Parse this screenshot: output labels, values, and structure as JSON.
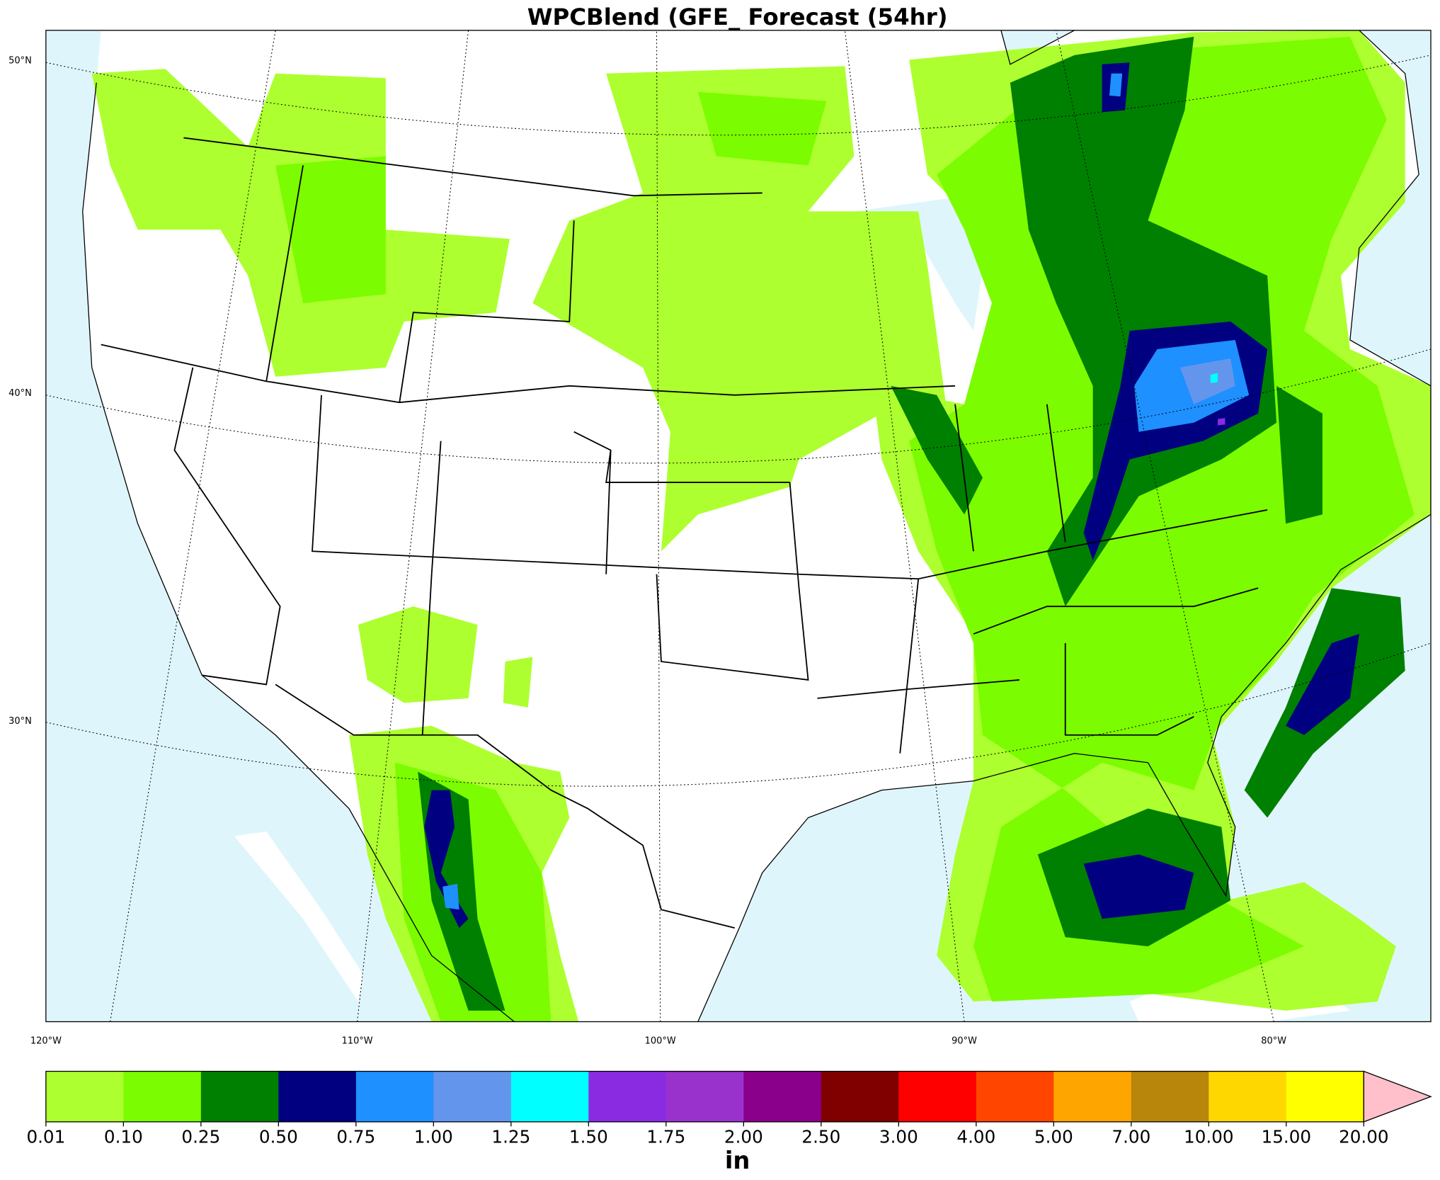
{
  "map": {
    "title": "WPCBlend (GFE_ Forecast (54hr)",
    "lat_labels": [
      "50°N",
      "40°N",
      "30°N"
    ],
    "lon_labels": [
      "120°W",
      "110°W",
      "100°W",
      "90°W",
      "80°W"
    ]
  },
  "colorbar": {
    "ticks": [
      {
        "value": 0.01,
        "label": "0.01"
      },
      {
        "value": 0.1,
        "label": "0.10"
      },
      {
        "value": 0.25,
        "label": "0.25"
      },
      {
        "value": 0.5,
        "label": "0.50"
      },
      {
        "value": 0.75,
        "label": "0.75"
      },
      {
        "value": 1,
        "label": "1.00"
      },
      {
        "value": 1.25,
        "label": "1.25"
      },
      {
        "value": 1.5,
        "label": "1.50"
      },
      {
        "value": 1.75,
        "label": "1.75"
      },
      {
        "value": 2,
        "label": "2.00"
      },
      {
        "value": 2.5,
        "label": "2.50"
      },
      {
        "value": 3,
        "label": "3.00"
      },
      {
        "value": 4,
        "label": "4.00"
      },
      {
        "value": 5,
        "label": "5.00"
      },
      {
        "value": 7,
        "label": "7.00"
      },
      {
        "value": 10,
        "label": "10.00"
      },
      {
        "value": 15,
        "label": "15.00"
      },
      {
        "value": 20,
        "label": "20.00"
      }
    ],
    "colors": [
      "#adff2f",
      "#7cfc00",
      "#008000",
      "#000080",
      "#1e90ff",
      "#6495ed",
      "#00ffff",
      "#8a2be2",
      "#9932cc",
      "#8b008b",
      "#800000",
      "#ff0000",
      "#ff4500",
      "#ffa500",
      "#b8860b",
      "#ffd700",
      "#ffff00"
    ],
    "extend_color": "#ffc0cb",
    "unit": "in"
  }
}
